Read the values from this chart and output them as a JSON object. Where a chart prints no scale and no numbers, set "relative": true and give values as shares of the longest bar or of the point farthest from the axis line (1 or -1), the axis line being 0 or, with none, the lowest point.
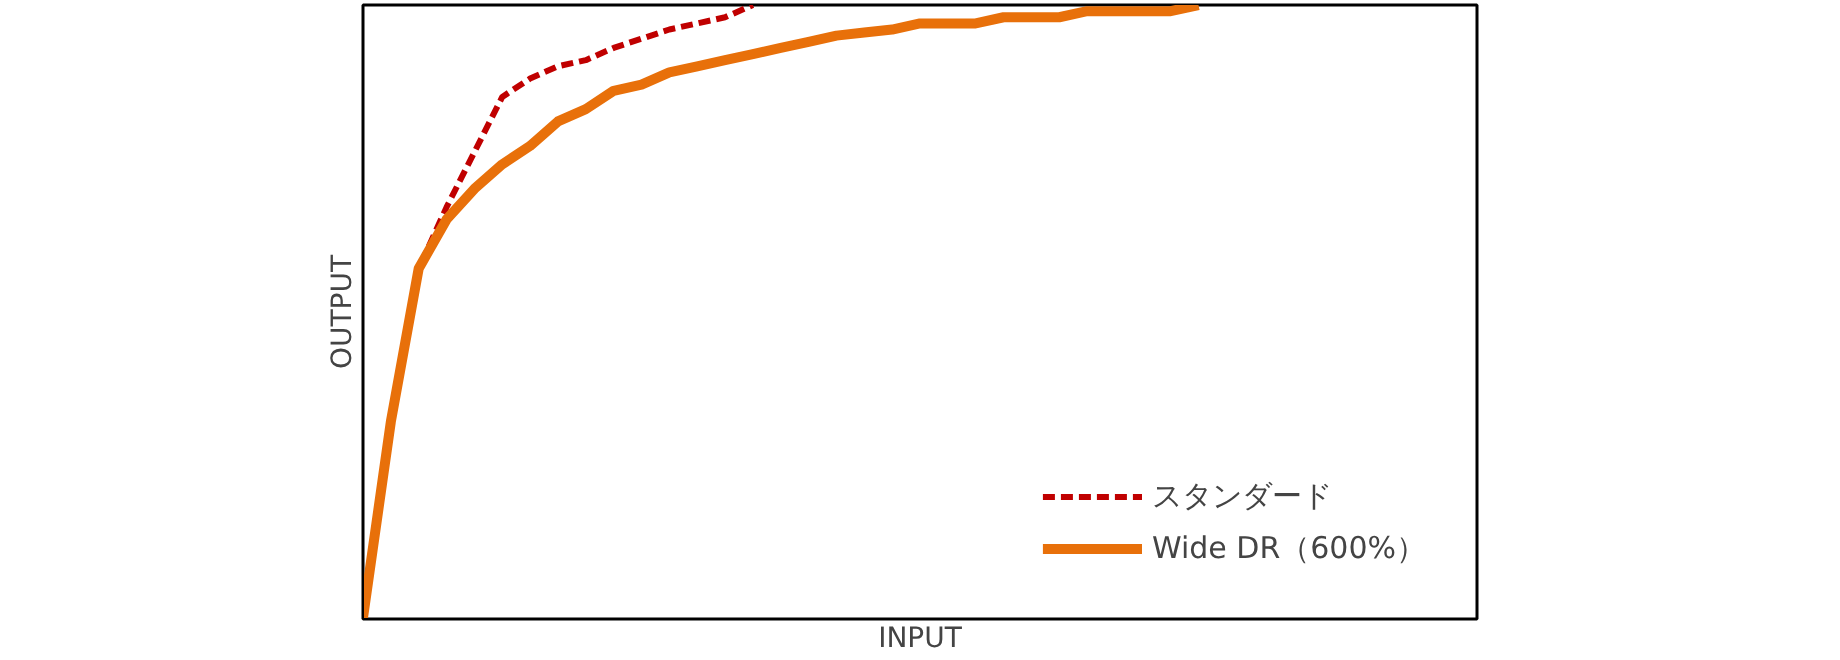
{
  "chart_data": {
    "type": "line",
    "relative": true,
    "xlabel": "INPUT",
    "ylabel": "OUTPUT",
    "legend": "bottom right",
    "categories": [
      null,
      null,
      null,
      null,
      null,
      null,
      null,
      null,
      null,
      null,
      null,
      null,
      null,
      null,
      null,
      null,
      null,
      null,
      null,
      null,
      null,
      null,
      null,
      null,
      null,
      null,
      null,
      null,
      null,
      null,
      null
    ],
    "series": [
      {
        "name": "スタンダード",
        "color": "#c00000",
        "line_style": "dashed",
        "values": [
          0,
          0.32,
          0.57,
          0.67,
          0.76,
          0.85,
          0.88,
          0.9,
          0.91,
          0.93,
          0.945,
          0.96,
          0.97,
          0.98,
          1.0,
          null,
          null,
          null,
          null,
          null,
          null,
          null,
          null,
          null,
          null,
          null,
          null,
          null,
          null,
          null,
          null
        ]
      },
      {
        "name": "Wide DR（600%）",
        "color": "#e8700a",
        "line_style": "solid",
        "values": [
          0,
          0.32,
          0.57,
          0.65,
          0.7,
          0.74,
          0.77,
          0.81,
          0.83,
          0.86,
          0.87,
          0.89,
          0.9,
          0.91,
          0.92,
          0.93,
          0.94,
          0.95,
          0.955,
          0.96,
          0.97,
          0.97,
          0.97,
          0.98,
          0.98,
          0.98,
          0.99,
          0.99,
          0.99,
          0.99,
          1.0
        ]
      }
    ]
  }
}
